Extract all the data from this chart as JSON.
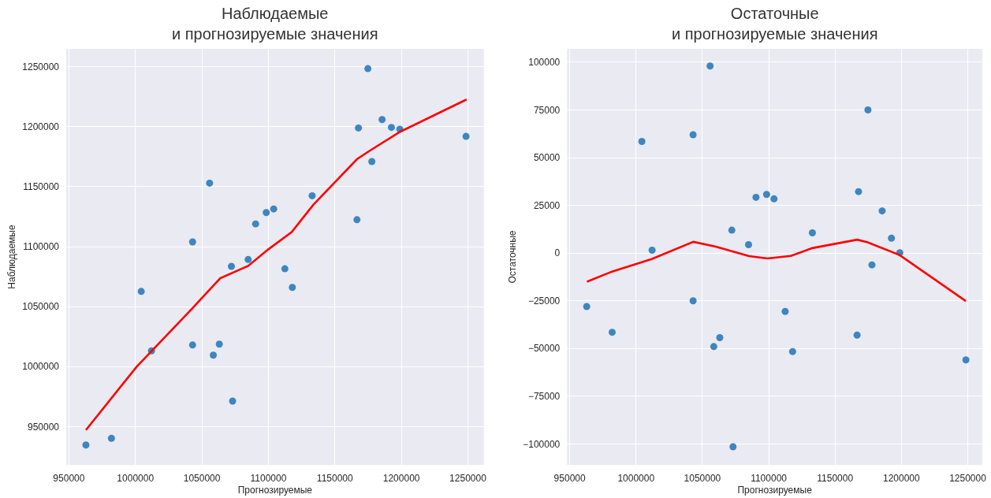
{
  "chart_data": [
    {
      "type": "scatter",
      "title": "Наблюдаемые\nи прогнозируемые значения",
      "xlabel": "Прогнозируемые",
      "ylabel": "Наблюдаемые",
      "grid": true,
      "xlim": [
        948000,
        1262000
      ],
      "xticks": [
        950000,
        1000000,
        1050000,
        1100000,
        1150000,
        1200000,
        1250000
      ],
      "ylim": [
        918000,
        1265000
      ],
      "yticks": [
        950000,
        1000000,
        1050000,
        1100000,
        1150000,
        1200000,
        1250000
      ],
      "series": [
        {
          "color": "#3d86bf",
          "marker": "circle",
          "x": [
            962800,
            982000,
            1004400,
            1012100,
            1043000,
            1043000,
            1055800,
            1058600,
            1063100,
            1072200,
            1073100,
            1084800,
            1090400,
            1098400,
            1104000,
            1112400,
            1118000,
            1132900,
            1166600,
            1167700,
            1174800,
            1177800,
            1185500,
            1192500,
            1198800,
            1248600
          ],
          "values": [
            934600,
            940200,
            1062700,
            1013100,
            1104000,
            1018000,
            1153000,
            1009500,
            1018700,
            1083600,
            971200,
            1089300,
            1119000,
            1128500,
            1131500,
            1081600,
            1066000,
            1142500,
            1122500,
            1199000,
            1248500,
            1171000,
            1206000,
            1199500,
            1198000,
            1192000
          ]
        },
        {
          "type": "line",
          "color": "#ff0000",
          "line_style": "solid",
          "x": [
            962800,
            1000700,
            1042800,
            1063800,
            1084800,
            1100200,
            1117500,
            1133900,
            1166600,
            1176000,
            1199300,
            1249000
          ],
          "values": [
            947100,
            999600,
            1048600,
            1073700,
            1084000,
            1098000,
            1112100,
            1135100,
            1173000,
            1179900,
            1196000,
            1222800
          ]
        }
      ]
    },
    {
      "type": "scatter",
      "title": "Остаточные\nи прогнозируемые значения",
      "xlabel": "Прогнозируемые",
      "ylabel": "Остаточные",
      "grid": true,
      "xlim": [
        948000,
        1261000
      ],
      "xticks": [
        950000,
        1000000,
        1050000,
        1100000,
        1150000,
        1200000,
        1250000
      ],
      "ylim": [
        -111000,
        107000
      ],
      "yticks": [
        -100000,
        -75000,
        -50000,
        -25000,
        0,
        25000,
        50000,
        75000,
        100000
      ],
      "series": [
        {
          "color": "#3d86bf",
          "marker": "circle",
          "x": [
            962800,
            982000,
            1004400,
            1012100,
            1043000,
            1043000,
            1055800,
            1058600,
            1063100,
            1072200,
            1073100,
            1084800,
            1090400,
            1098400,
            1104000,
            1112400,
            1118000,
            1132900,
            1166600,
            1167700,
            1174800,
            1177800,
            1185500,
            1192500,
            1198800,
            1248600
          ],
          "values": [
            -28000,
            -41500,
            58500,
            1500,
            62000,
            -25000,
            98000,
            -49000,
            -44300,
            12000,
            -101500,
            4400,
            29200,
            30700,
            28400,
            -30600,
            -51600,
            10600,
            -43000,
            32200,
            75000,
            -6200,
            22100,
            7800,
            200,
            -56000
          ]
        },
        {
          "type": "line",
          "color": "#ff0000",
          "line_style": "solid",
          "x": [
            963000,
            982300,
            1011800,
            1043200,
            1060100,
            1085100,
            1099000,
            1116700,
            1132800,
            1166700,
            1174500,
            1198600,
            1248600
          ],
          "values": [
            -15000,
            -9600,
            -3100,
            5900,
            3400,
            -1600,
            -2800,
            -1500,
            2600,
            7000,
            5600,
            -1000,
            -25200
          ]
        }
      ]
    }
  ]
}
